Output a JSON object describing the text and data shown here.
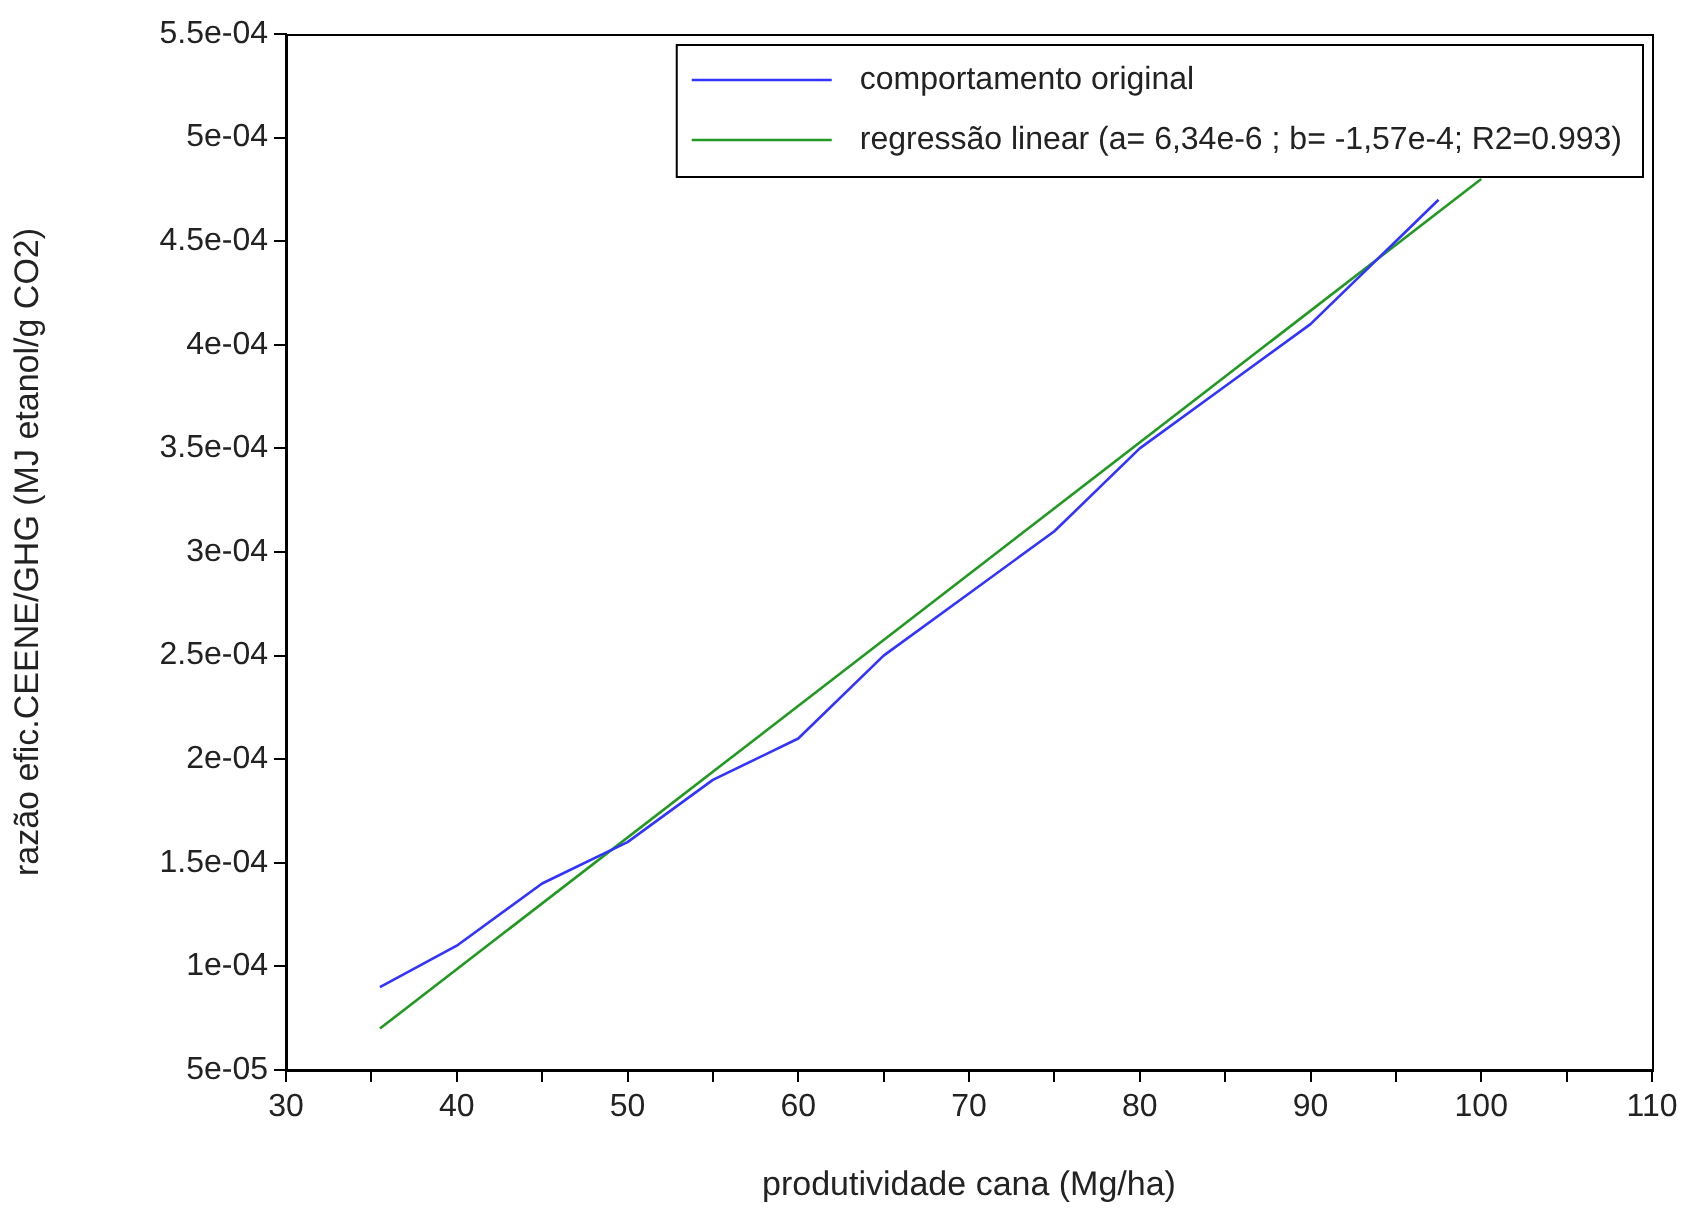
{
  "chart_data": {
    "type": "line",
    "xlabel": "produtividade cana (Mg/ha)",
    "ylabel": "razão efic.CEENE/GHG (MJ etanol/g CO2)",
    "xlim": [
      30,
      110
    ],
    "xticks": [
      30,
      {
        "value": 35,
        "label": null
      },
      40,
      {
        "value": 45,
        "label": null
      },
      50,
      {
        "value": 55,
        "label": null
      },
      60,
      {
        "value": 65,
        "label": null
      },
      70,
      {
        "value": 75,
        "label": null
      },
      80,
      {
        "value": 85,
        "label": null
      },
      90,
      {
        "value": 95,
        "label": null
      },
      100,
      {
        "value": 105,
        "label": null
      },
      110
    ],
    "ylim": [
      5e-05,
      0.00055
    ],
    "yticks": [
      {
        "value": 5e-05,
        "label": "5e-05"
      },
      {
        "value": 0.0001,
        "label": "1e-04"
      },
      {
        "value": 0.00015,
        "label": "1.5e-04"
      },
      {
        "value": 0.0002,
        "label": "2e-04"
      },
      {
        "value": 0.00025,
        "label": "2.5e-04"
      },
      {
        "value": 0.0003,
        "label": "3e-04"
      },
      {
        "value": 0.00035,
        "label": "3.5e-04"
      },
      {
        "value": 0.0004,
        "label": "4e-04"
      },
      {
        "value": 0.00045,
        "label": "4.5e-04"
      },
      {
        "value": 0.0005,
        "label": "5e-04"
      },
      {
        "value": 0.00055,
        "label": "5.5e-04"
      }
    ],
    "grid": false,
    "legend": "top right",
    "marker": "none",
    "line_style": "solid",
    "series": [
      {
        "name": "comportamento original",
        "color": "#3333ff",
        "x": [
          35.5,
          40,
          45,
          50,
          55,
          60,
          65,
          70,
          75,
          80,
          85,
          90,
          95,
          97.5
        ],
        "values": [
          9e-05,
          0.00011,
          0.00014,
          0.00016,
          0.00019,
          0.00021,
          0.00025,
          0.00028,
          0.00031,
          0.00035,
          0.00038,
          0.00041,
          0.00045,
          0.00047
        ]
      },
      {
        "name": "regressão linear (a= 6,34e-6 ; b= -1,57e-4; R2=0.993)",
        "color": "#229922",
        "x": [
          35.5,
          100
        ],
        "values": [
          7e-05,
          0.00048
        ]
      }
    ]
  }
}
